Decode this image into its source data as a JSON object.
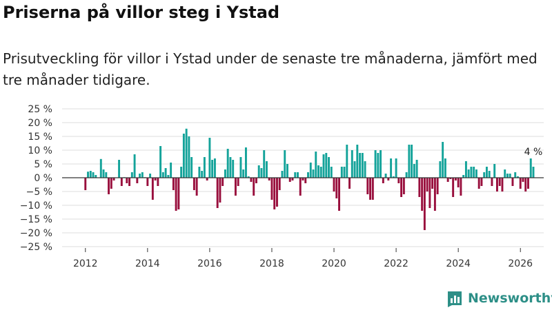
{
  "title": "Priserna på villor steg i Ystad",
  "subtitle": "Prisutveckling för villor i Ystad under de senaste tre månaderna, jämfört med tre månader tidigare.",
  "brand": "Newsworthy",
  "colors": {
    "positive": "#14a39a",
    "negative": "#990f3d",
    "axis": "#333333",
    "grid": "#dddddd",
    "brand": "#2d8f87"
  },
  "chart_data": {
    "type": "bar",
    "title": "Priserna på villor steg i Ystad",
    "xlabel": "",
    "ylabel": "",
    "ylim": [
      -25,
      25
    ],
    "y_ticks": [
      25,
      20,
      15,
      10,
      5,
      0,
      -5,
      -10,
      -15,
      -20,
      -25
    ],
    "y_tick_labels": [
      "25 %",
      "20 %",
      "15 %",
      "10 %",
      "5 %",
      "0 %",
      "−5 %",
      "−10 %",
      "−15 %",
      "−20 %",
      "−25 %"
    ],
    "x_ticks": [
      "2012",
      "2014",
      "2016",
      "2018",
      "2020",
      "2022",
      "2024",
      "2026"
    ],
    "x_range": [
      2011.25,
      2026.75
    ],
    "grid": true,
    "annotation": {
      "text": "4 %",
      "target": "last"
    },
    "series": [
      {
        "name": "Prisutveckling",
        "start": "2012-01",
        "frequency": "monthly",
        "values": [
          -4.5,
          2.2,
          2.5,
          2,
          1,
          0.1,
          6.8,
          3,
          2,
          -6,
          -4,
          -1,
          0.1,
          6.5,
          -3,
          0.2,
          -2,
          -3,
          2,
          8.5,
          -2,
          1.5,
          2,
          0.2,
          -3,
          1.5,
          -8,
          -1,
          -3,
          11.5,
          2,
          3.5,
          1,
          5.5,
          -4.5,
          -12,
          -11.5,
          4,
          16,
          17.8,
          15,
          7.5,
          -4.5,
          -6.5,
          4,
          2.5,
          7.5,
          -1,
          14.5,
          6.5,
          7,
          -11,
          -9,
          -3,
          3,
          10.5,
          7.5,
          6.5,
          -6.5,
          -3,
          7.5,
          3,
          11,
          0.5,
          -1.5,
          -6.5,
          -2,
          4.5,
          3.5,
          10,
          6,
          -1,
          -8,
          -11.5,
          -10.5,
          -4.5,
          2.5,
          10,
          5,
          -1.5,
          -1,
          2,
          2,
          -6.5,
          -1,
          -2,
          2,
          5.5,
          3,
          9.5,
          4.5,
          4,
          8.5,
          9,
          7.5,
          4,
          -5,
          -7.5,
          -12,
          4,
          4,
          12,
          -4,
          10,
          6,
          12,
          9,
          9,
          6,
          -6,
          -8,
          -8,
          10,
          9,
          10,
          -2,
          1.5,
          -1,
          7,
          0.5,
          7,
          -2,
          -7,
          -6,
          2,
          12,
          12,
          5,
          6.5,
          -7,
          -12,
          -19,
          -5,
          -11,
          -4,
          -12,
          -6,
          6,
          13,
          7,
          -1.5,
          -0.5,
          -7,
          -1,
          -3.5,
          -6.5,
          1,
          6,
          3,
          4,
          4,
          3,
          -4,
          -3,
          2,
          4,
          2.5,
          -3,
          5,
          -5,
          -3,
          -5,
          3,
          1.5,
          1.5,
          -3,
          2,
          0.5,
          -4,
          -1.5,
          -5,
          -4,
          7,
          4
        ]
      }
    ]
  }
}
